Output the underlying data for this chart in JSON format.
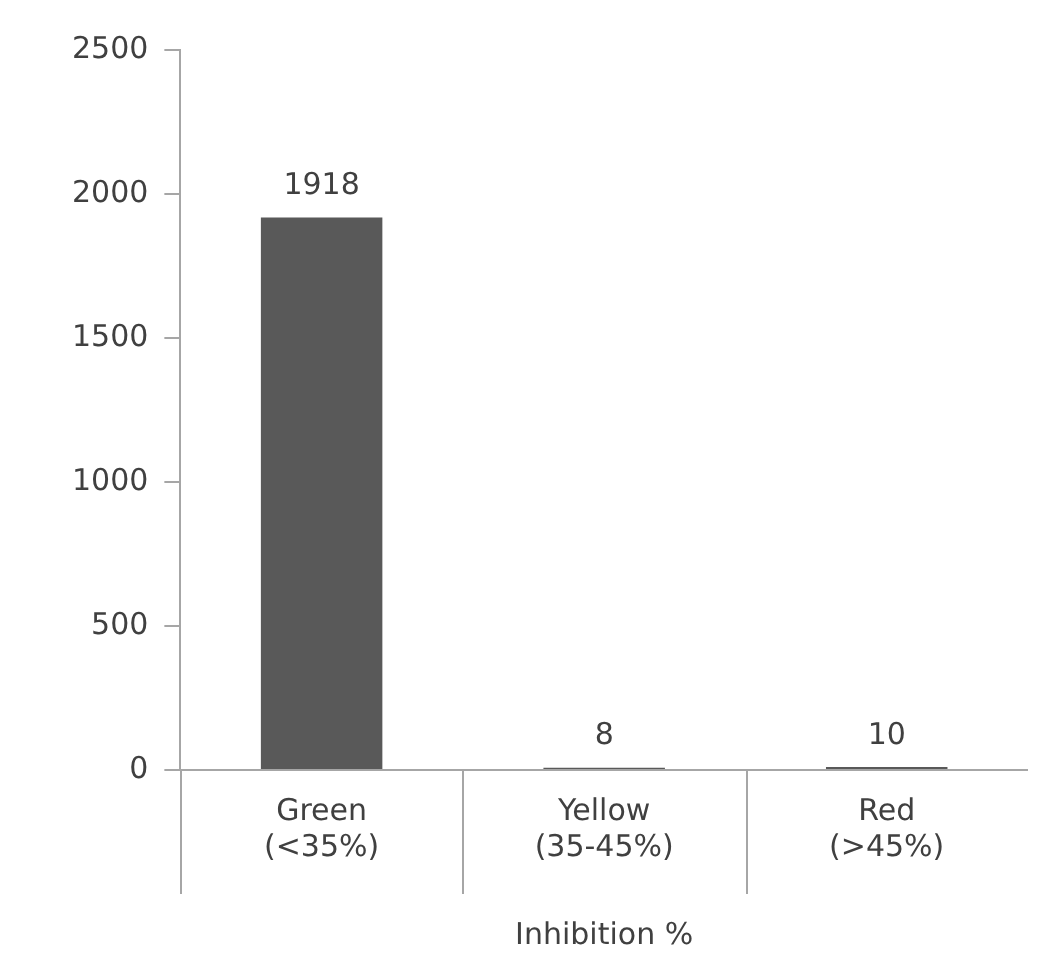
{
  "chart_data": {
    "type": "bar",
    "xlabel": "Inhibition %",
    "categories": [
      "Green (<35%)",
      "Yellow (35-45%)",
      "Red (>45%)"
    ],
    "values": [
      1918,
      8,
      10
    ],
    "color": "#595959",
    "ylim": [
      0,
      2500
    ],
    "yticks": [
      0,
      500,
      1000,
      1500,
      2000,
      2500
    ],
    "grid": false,
    "legend": false,
    "data_labels": true
  }
}
